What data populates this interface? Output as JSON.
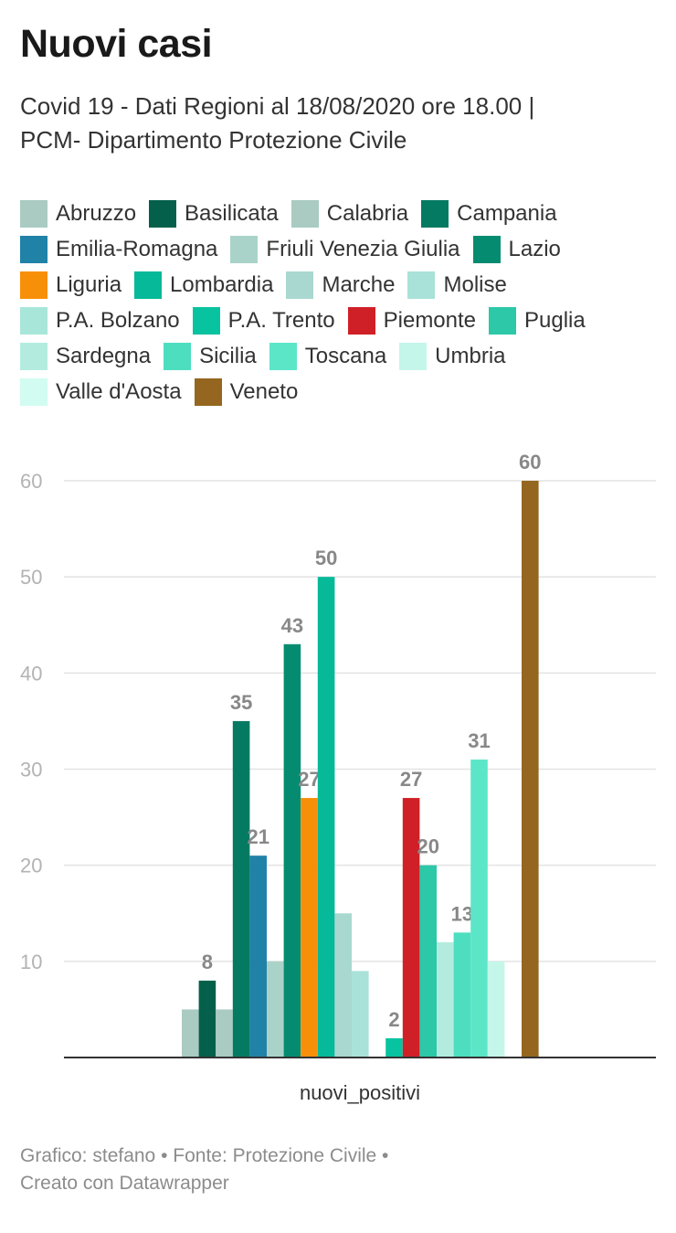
{
  "title": "Nuovi casi",
  "subtitle_line1": "Covid 19 - Dati Regioni al 18/08/2020 ore 18.00 |",
  "subtitle_line2": "PCM- Dipartimento Protezione Civile",
  "footer_line1": "Grafico: stefano • Fonte: Protezione Civile •",
  "footer_line2": "Creato con Datawrapper",
  "chart_data": {
    "type": "bar",
    "title": "Nuovi casi",
    "categories": [
      "nuovi_positivi"
    ],
    "xlabel": "nuovi_positivi",
    "ylabel": "",
    "ylim": [
      0,
      60
    ],
    "yticks": [
      10,
      20,
      30,
      40,
      50,
      60
    ],
    "grid": true,
    "legend_position": "top",
    "series": [
      {
        "name": "Abruzzo",
        "values": [
          5
        ],
        "color": "#a9cbc2",
        "labeled": false
      },
      {
        "name": "Basilicata",
        "values": [
          8
        ],
        "color": "#04604a",
        "labeled": true
      },
      {
        "name": "Calabria",
        "values": [
          5
        ],
        "color": "#a9cbc2",
        "labeled": false
      },
      {
        "name": "Campania",
        "values": [
          35
        ],
        "color": "#057a62",
        "labeled": true
      },
      {
        "name": "Emilia-Romagna",
        "values": [
          21
        ],
        "color": "#2182a8",
        "labeled": true
      },
      {
        "name": "Friuli Venezia Giulia",
        "values": [
          10
        ],
        "color": "#a9d3c9",
        "labeled": false
      },
      {
        "name": "Lazio",
        "values": [
          43
        ],
        "color": "#058c70",
        "labeled": true
      },
      {
        "name": "Liguria",
        "values": [
          27
        ],
        "color": "#f79008",
        "labeled": true
      },
      {
        "name": "Lombardia",
        "values": [
          50
        ],
        "color": "#06b999",
        "labeled": true
      },
      {
        "name": "Marche",
        "values": [
          15
        ],
        "color": "#a9d8d0",
        "labeled": false
      },
      {
        "name": "Molise",
        "values": [
          9
        ],
        "color": "#a9e2d8",
        "labeled": false
      },
      {
        "name": "P.A. Bolzano",
        "values": [
          0
        ],
        "color": "#a9e6da",
        "labeled": false
      },
      {
        "name": "P.A. Trento",
        "values": [
          2
        ],
        "color": "#08c3a0",
        "labeled": true
      },
      {
        "name": "Piemonte",
        "values": [
          27
        ],
        "color": "#cf2027",
        "labeled": true
      },
      {
        "name": "Puglia",
        "values": [
          20
        ],
        "color": "#2cc8a8",
        "labeled": true
      },
      {
        "name": "Sardegna",
        "values": [
          12
        ],
        "color": "#b3ecdf",
        "labeled": false
      },
      {
        "name": "Sicilia",
        "values": [
          13
        ],
        "color": "#4ddec0",
        "labeled": true
      },
      {
        "name": "Toscana",
        "values": [
          31
        ],
        "color": "#5ce6c8",
        "labeled": true
      },
      {
        "name": "Umbria",
        "values": [
          10
        ],
        "color": "#c4f6ea",
        "labeled": false
      },
      {
        "name": "Valle d'Aosta",
        "values": [
          0
        ],
        "color": "#d2fcf1",
        "labeled": false
      },
      {
        "name": "Veneto",
        "values": [
          60
        ],
        "color": "#94661f",
        "labeled": true
      }
    ]
  }
}
